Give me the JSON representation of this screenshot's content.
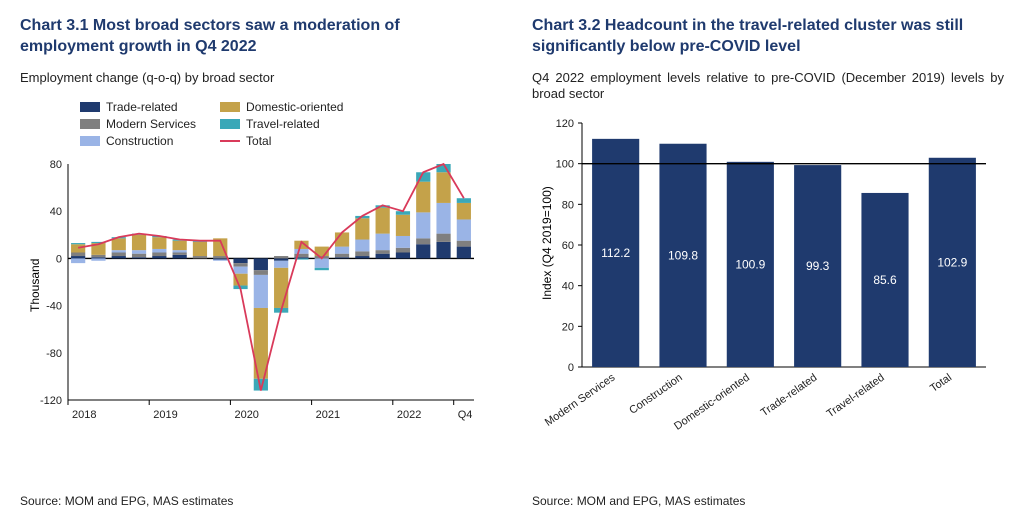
{
  "colors": {
    "title": "#1f3a6e",
    "text": "#222222",
    "axis": "#000000",
    "grid": "#000000"
  },
  "chart1": {
    "title_prefix": "Chart 3.1",
    "title_rest": " Most broad sectors saw a moderation of employment growth in Q4 2022",
    "subtitle": "Employment change (q-o-q) by broad sector",
    "ylabel": "Thousand",
    "ylim": [
      -120,
      80
    ],
    "ytick_step": 40,
    "x_axis_labels": [
      "2018",
      "2019",
      "2020",
      "2021",
      "2022",
      "Q4"
    ],
    "x_axis_label_positions": [
      0,
      4,
      8,
      12,
      16,
      19
    ],
    "legend_layout": [
      [
        "Trade-related",
        "Modern Services",
        "Construction"
      ],
      [
        "Domestic-oriented",
        "Travel-related",
        "Total"
      ]
    ],
    "series": {
      "Trade-related": {
        "color": "#1f3a6e",
        "type": "bar"
      },
      "Modern Services": {
        "color": "#7f7f7f",
        "type": "bar"
      },
      "Construction": {
        "color": "#9ab4e6",
        "type": "bar"
      },
      "Domestic-oriented": {
        "color": "#c4a24a",
        "type": "bar"
      },
      "Travel-related": {
        "color": "#3aa8b8",
        "type": "bar"
      },
      "Total": {
        "color": "#d93a5a",
        "type": "line"
      }
    },
    "stack_order": [
      "Trade-related",
      "Modern Services",
      "Construction",
      "Domestic-oriented",
      "Travel-related"
    ],
    "periods": 20,
    "data": {
      "Trade-related": [
        2,
        1,
        2,
        1,
        2,
        3,
        0,
        -1,
        -4,
        -10,
        -2,
        1,
        0,
        1,
        2,
        4,
        5,
        12,
        14,
        10
      ],
      "Modern Services": [
        3,
        2,
        3,
        3,
        3,
        2,
        2,
        2,
        -3,
        -4,
        2,
        3,
        2,
        3,
        4,
        3,
        4,
        5,
        7,
        5
      ],
      "Construction": [
        -4,
        -2,
        2,
        3,
        3,
        2,
        0,
        -1,
        -6,
        -28,
        -6,
        4,
        -8,
        6,
        10,
        14,
        10,
        22,
        26,
        18
      ],
      "Domestic-oriented": [
        7,
        10,
        10,
        13,
        10,
        8,
        12,
        15,
        -10,
        -60,
        -34,
        7,
        8,
        12,
        18,
        22,
        18,
        26,
        26,
        14
      ],
      "Travel-related": [
        1,
        1,
        1,
        1,
        1,
        1,
        1,
        0,
        -3,
        -10,
        -4,
        -1,
        -2,
        0,
        2,
        2,
        3,
        8,
        7,
        4
      ]
    },
    "font_size_tick": 11,
    "bar_width_ratio": 0.7,
    "source": "Source: MOM and EPG, MAS estimates"
  },
  "chart2": {
    "title_prefix": "Chart 3.2",
    "title_rest": " Headcount in the travel-related cluster was still significantly below pre-COVID level",
    "subtitle": "Q4 2022 employment levels relative to pre-COVID (December 2019) levels by broad sector",
    "ylabel": "Index (Q4 2019=100)",
    "ylim": [
      0,
      120
    ],
    "ytick_step": 20,
    "reference_line": 100,
    "categories": [
      "Modern Services",
      "Construction",
      "Domestic-oriented",
      "Trade-related",
      "Travel-related",
      "Total"
    ],
    "values": [
      112.2,
      109.8,
      100.9,
      99.3,
      85.6,
      102.9
    ],
    "bar_color": "#1f3a6e",
    "bar_width_ratio": 0.7,
    "value_label_color": "#ffffff",
    "value_label_fontsize": 12,
    "x_label_rotation": -35,
    "font_size_tick": 11,
    "source": "Source: MOM and EPG, MAS estimates"
  }
}
